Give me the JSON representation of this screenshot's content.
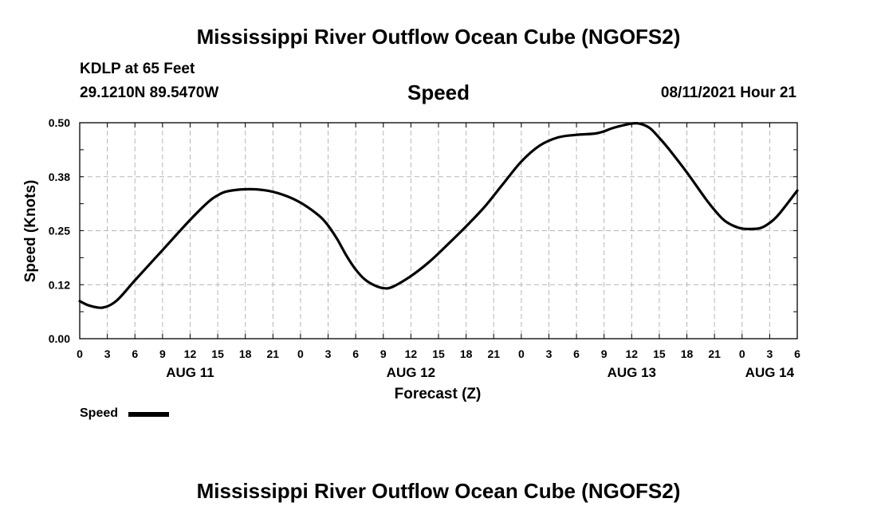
{
  "page": {
    "title_top": "Mississippi River Outflow Ocean Cube (NGOFS2)",
    "title_bottom": "Mississippi River Outflow Ocean Cube (NGOFS2)",
    "station": "KDLP at 65 Feet",
    "coordinates": "29.1210N  89.5470W",
    "variable": "Speed",
    "timestamp": "08/11/2021 Hour 21",
    "legend_label": "Speed"
  },
  "chart_data": {
    "type": "line",
    "title": "Speed",
    "xlabel": "Forecast (Z)",
    "ylabel": "Speed (Knots)",
    "x_unit": "hours since 00Z Aug 11",
    "xlim": [
      0,
      78
    ],
    "ylim": [
      0,
      0.5
    ],
    "grid": true,
    "x_ticks": [
      {
        "x": 0,
        "label": "0"
      },
      {
        "x": 3,
        "label": "3"
      },
      {
        "x": 6,
        "label": "6"
      },
      {
        "x": 9,
        "label": "9"
      },
      {
        "x": 12,
        "label": "12"
      },
      {
        "x": 15,
        "label": "15"
      },
      {
        "x": 18,
        "label": "18"
      },
      {
        "x": 21,
        "label": "21"
      },
      {
        "x": 24,
        "label": "0"
      },
      {
        "x": 27,
        "label": "3"
      },
      {
        "x": 30,
        "label": "6"
      },
      {
        "x": 33,
        "label": "9"
      },
      {
        "x": 36,
        "label": "12"
      },
      {
        "x": 39,
        "label": "15"
      },
      {
        "x": 42,
        "label": "18"
      },
      {
        "x": 45,
        "label": "21"
      },
      {
        "x": 48,
        "label": "0"
      },
      {
        "x": 51,
        "label": "3"
      },
      {
        "x": 54,
        "label": "6"
      },
      {
        "x": 57,
        "label": "9"
      },
      {
        "x": 60,
        "label": "12"
      },
      {
        "x": 63,
        "label": "15"
      },
      {
        "x": 66,
        "label": "18"
      },
      {
        "x": 69,
        "label": "21"
      },
      {
        "x": 72,
        "label": "0"
      },
      {
        "x": 75,
        "label": "3"
      },
      {
        "x": 78,
        "label": "6"
      }
    ],
    "date_labels": [
      {
        "x": 12,
        "label": "AUG 11"
      },
      {
        "x": 36,
        "label": "AUG 12"
      },
      {
        "x": 60,
        "label": "AUG 13"
      },
      {
        "x": 75,
        "label": "AUG 14"
      }
    ],
    "y_ticks": [
      {
        "y": 0.0,
        "label": "0.00"
      },
      {
        "y": 0.125,
        "label": "0.12"
      },
      {
        "y": 0.25,
        "label": "0.25"
      },
      {
        "y": 0.375,
        "label": "0.38"
      },
      {
        "y": 0.5,
        "label": "0.50"
      }
    ],
    "series": [
      {
        "name": "Speed",
        "color": "#000000",
        "x": [
          0,
          1,
          2.5,
          4,
          6,
          9,
          12,
          14,
          15,
          16,
          18,
          20,
          22,
          24,
          26,
          27,
          28,
          29,
          30,
          31,
          32,
          33,
          34,
          36,
          38,
          40,
          42,
          44,
          46,
          48,
          50,
          52,
          54,
          56,
          57,
          58,
          60,
          61,
          62,
          63,
          64,
          66,
          68,
          69,
          70,
          71,
          72,
          73,
          74,
          75,
          76,
          78
        ],
        "values": [
          0.087,
          0.077,
          0.072,
          0.088,
          0.135,
          0.205,
          0.275,
          0.317,
          0.332,
          0.341,
          0.346,
          0.344,
          0.334,
          0.315,
          0.285,
          0.262,
          0.23,
          0.192,
          0.16,
          0.137,
          0.124,
          0.117,
          0.12,
          0.145,
          0.178,
          0.218,
          0.26,
          0.305,
          0.358,
          0.41,
          0.447,
          0.466,
          0.472,
          0.475,
          0.48,
          0.488,
          0.498,
          0.497,
          0.487,
          0.465,
          0.44,
          0.385,
          0.325,
          0.298,
          0.275,
          0.262,
          0.255,
          0.254,
          0.256,
          0.268,
          0.288,
          0.343
        ]
      }
    ]
  }
}
